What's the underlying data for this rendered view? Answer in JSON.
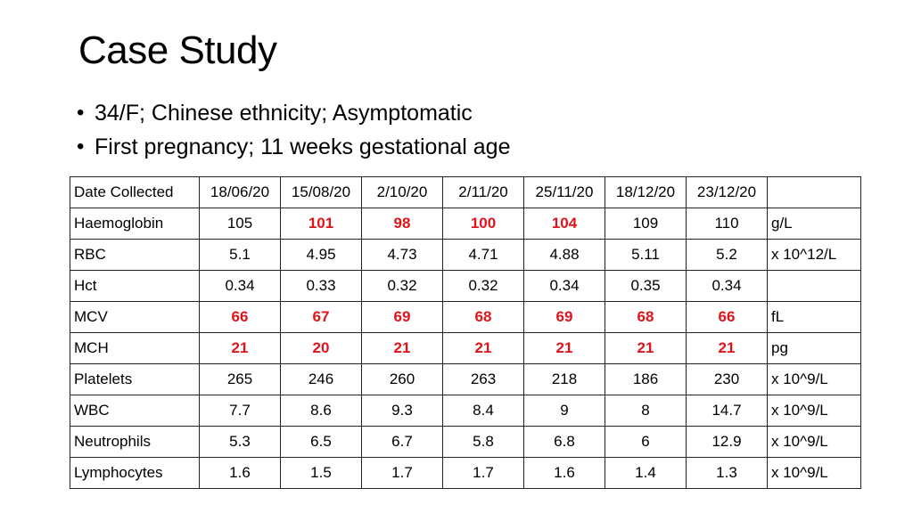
{
  "slide": {
    "title": "Case Study",
    "bullets": [
      "34/F; Chinese ethnicity; Asymptomatic",
      "First pregnancy; 11 weeks gestational age"
    ]
  },
  "colors": {
    "flag": "#e0141b"
  },
  "table": {
    "header": {
      "label": "Date Collected",
      "dates": [
        "18/06/20",
        "15/08/20",
        "2/10/20",
        "2/11/20",
        "25/11/20",
        "18/12/20",
        "23/12/20"
      ],
      "unit": ""
    },
    "rows": [
      {
        "label": "Haemoglobin",
        "values": [
          "105",
          "101",
          "98",
          "100",
          "104",
          "109",
          "110"
        ],
        "flags": [
          false,
          true,
          true,
          true,
          true,
          false,
          false
        ],
        "unit": "g/L"
      },
      {
        "label": "RBC",
        "values": [
          "5.1",
          "4.95",
          "4.73",
          "4.71",
          "4.88",
          "5.11",
          "5.2"
        ],
        "flags": [
          false,
          false,
          false,
          false,
          false,
          false,
          false
        ],
        "unit": "x 10^12/L"
      },
      {
        "label": "Hct",
        "values": [
          "0.34",
          "0.33",
          "0.32",
          "0.32",
          "0.34",
          "0.35",
          "0.34"
        ],
        "flags": [
          false,
          false,
          false,
          false,
          false,
          false,
          false
        ],
        "unit": ""
      },
      {
        "label": "MCV",
        "values": [
          "66",
          "67",
          "69",
          "68",
          "69",
          "68",
          "66"
        ],
        "flags": [
          true,
          true,
          true,
          true,
          true,
          true,
          true
        ],
        "unit": "fL"
      },
      {
        "label": "MCH",
        "values": [
          "21",
          "20",
          "21",
          "21",
          "21",
          "21",
          "21"
        ],
        "flags": [
          true,
          true,
          true,
          true,
          true,
          true,
          true
        ],
        "unit": "pg"
      },
      {
        "label": "Platelets",
        "values": [
          "265",
          "246",
          "260",
          "263",
          "218",
          "186",
          "230"
        ],
        "flags": [
          false,
          false,
          false,
          false,
          false,
          false,
          false
        ],
        "unit": "x 10^9/L"
      },
      {
        "label": "WBC",
        "values": [
          "7.7",
          "8.6",
          "9.3",
          "8.4",
          "9",
          "8",
          "14.7"
        ],
        "flags": [
          false,
          false,
          false,
          false,
          false,
          false,
          false
        ],
        "unit": "x 10^9/L"
      },
      {
        "label": "Neutrophils",
        "values": [
          "5.3",
          "6.5",
          "6.7",
          "5.8",
          "6.8",
          "6",
          "12.9"
        ],
        "flags": [
          false,
          false,
          false,
          false,
          false,
          false,
          false
        ],
        "unit": "x 10^9/L"
      },
      {
        "label": "Lymphocytes",
        "values": [
          "1.6",
          "1.5",
          "1.7",
          "1.7",
          "1.6",
          "1.4",
          "1.3"
        ],
        "flags": [
          false,
          false,
          false,
          false,
          false,
          false,
          false
        ],
        "unit": "x 10^9/L"
      }
    ]
  }
}
